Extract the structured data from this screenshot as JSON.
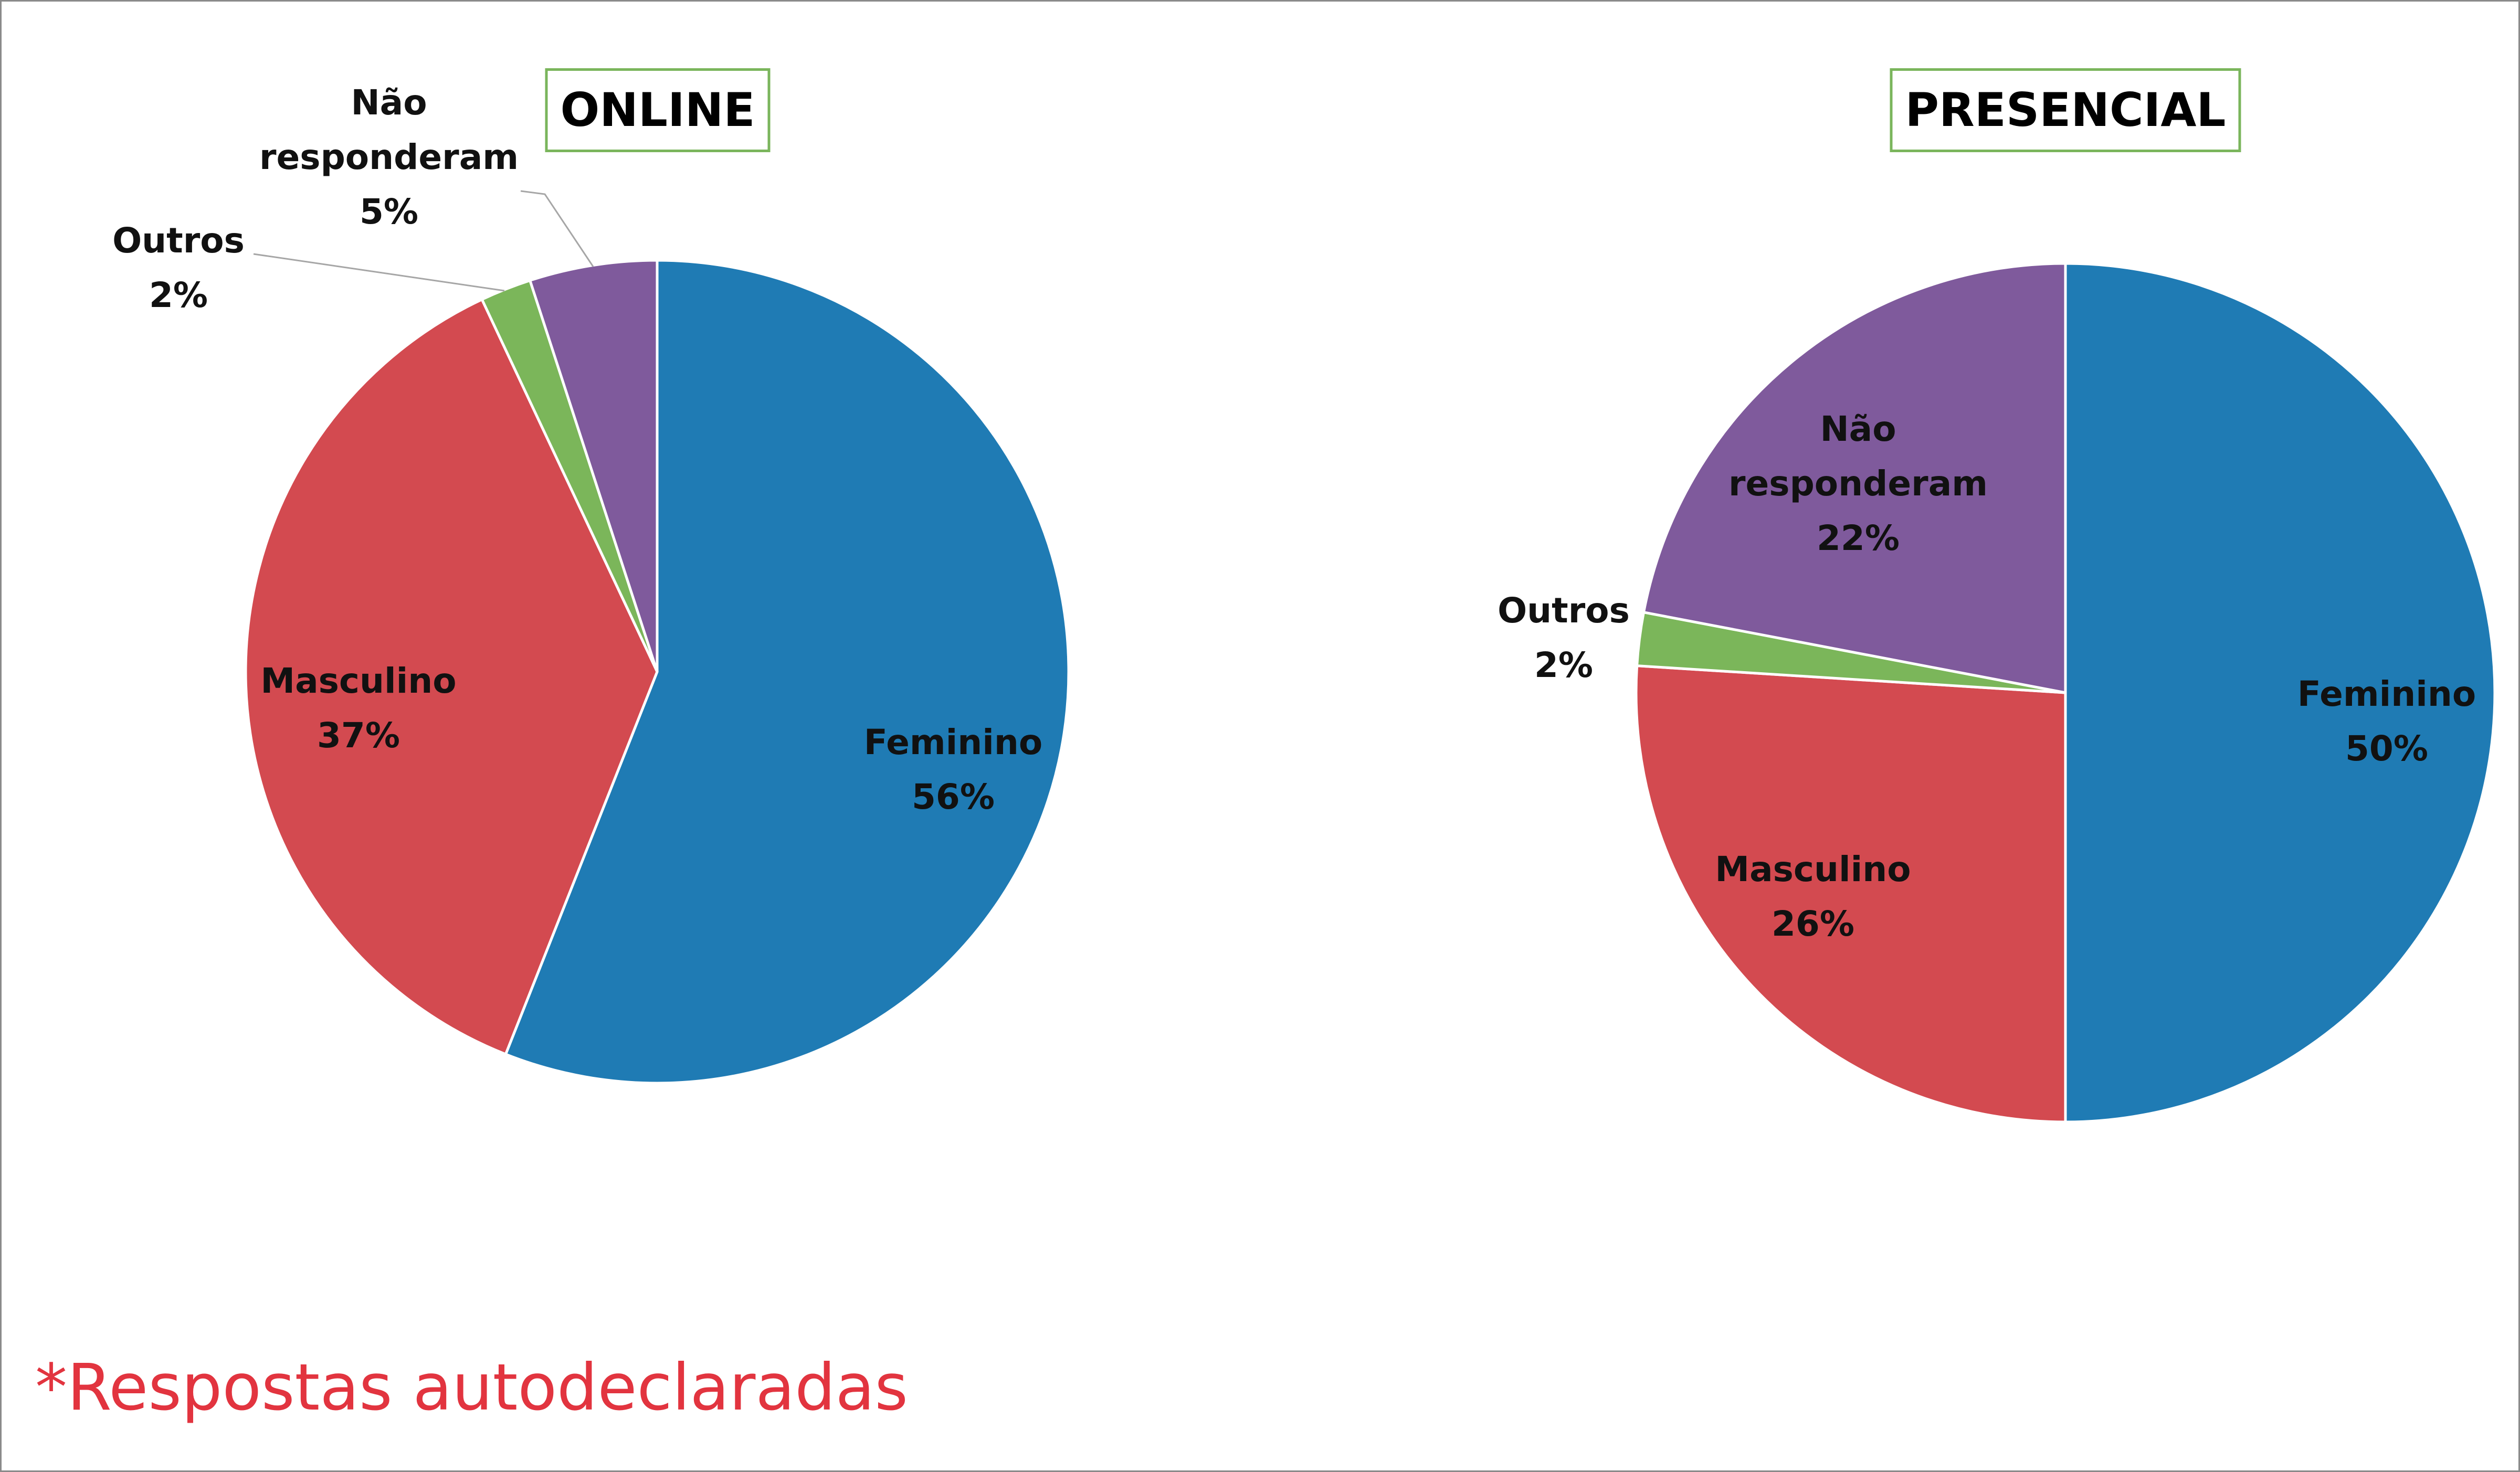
{
  "chart_data": [
    {
      "type": "pie",
      "title": "ONLINE",
      "categories": [
        "Feminino",
        "Masculino",
        "Outros",
        "Não responderam"
      ],
      "values": [
        56,
        37,
        2,
        5
      ],
      "value_labels": [
        "56%",
        "37%",
        "2%",
        "5%"
      ],
      "colors": [
        "#1f7bb4",
        "#d34a50",
        "#7bb65a",
        "#7f5a9c"
      ]
    },
    {
      "type": "pie",
      "title": "PRESENCIAL",
      "categories": [
        "Feminino",
        "Masculino",
        "Outros",
        "Não responderam"
      ],
      "values": [
        50,
        26,
        2,
        22
      ],
      "value_labels": [
        "50%",
        "26%",
        "2%",
        "22%"
      ],
      "colors": [
        "#1f7bb4",
        "#d34a50",
        "#7bb65a",
        "#7f5a9c"
      ]
    }
  ],
  "footnote": "*Respostas autodeclaradas"
}
